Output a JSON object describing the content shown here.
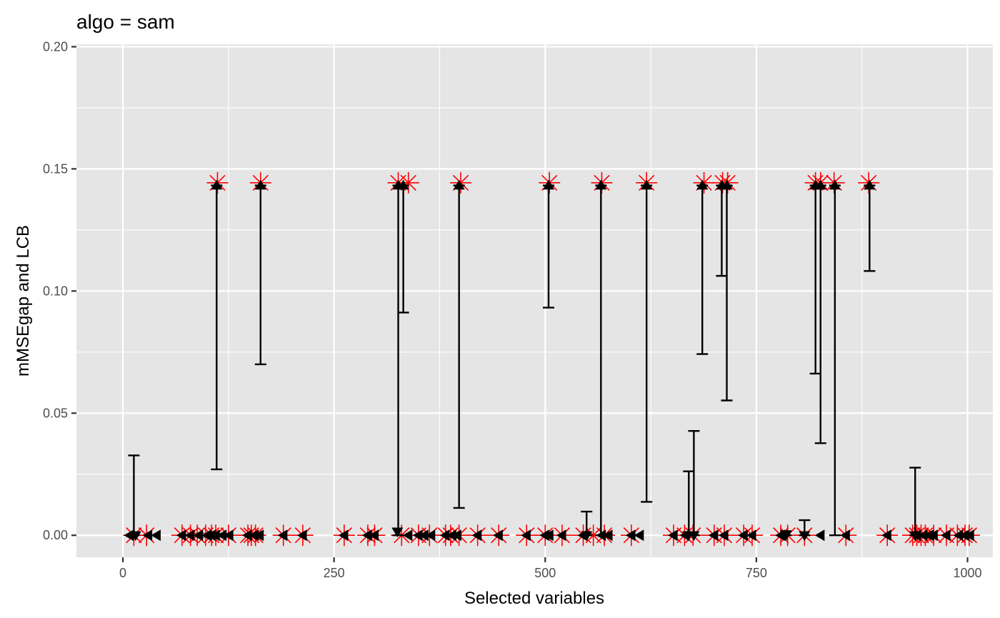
{
  "chart_data": {
    "type": "scatter",
    "title": "algo = sam",
    "xlabel": "Selected variables",
    "ylabel": "mMSEgap and LCB",
    "xlim": [
      -55,
      1030
    ],
    "ylim": [
      -0.009,
      0.201
    ],
    "x_ticks": [
      0,
      250,
      500,
      750,
      1000
    ],
    "x_tick_labels": [
      "0",
      "250",
      "500",
      "750",
      "1000"
    ],
    "y_ticks": [
      0,
      0.05,
      0.1,
      0.15,
      0.2
    ],
    "y_tick_labels": [
      "0.00",
      "0.05",
      "0.10",
      "0.15",
      "0.20"
    ],
    "grid": true,
    "legend": "none",
    "colors": {
      "panel": "#e5e5e5",
      "grid": "#ffffff",
      "star": "#ff0000",
      "marker": "#000000"
    },
    "series": [
      {
        "role": "mMSEgap star markers",
        "x": [
          13,
          28,
          70,
          80,
          88,
          98,
          105,
          110,
          112,
          125,
          148,
          152,
          157,
          163,
          190,
          213,
          262,
          290,
          298,
          326,
          330,
          338,
          350,
          363,
          382,
          388,
          398,
          400,
          420,
          445,
          478,
          500,
          505,
          520,
          545,
          557,
          567,
          570,
          602,
          620,
          652,
          665,
          675,
          688,
          700,
          710,
          712,
          716,
          735,
          745,
          779,
          787,
          807,
          820,
          826,
          842,
          856,
          883,
          905,
          935,
          940,
          945,
          950,
          960,
          975,
          988,
          997,
          1002
        ],
        "y": [
          0,
          0,
          0,
          0,
          0,
          0,
          0,
          0,
          0.1443,
          0,
          0,
          0,
          0,
          0.1443,
          0,
          0,
          0,
          0,
          0,
          0.1443,
          0,
          0.1443,
          0,
          0,
          0,
          0,
          0,
          0.1443,
          0,
          0,
          0,
          0,
          0.1443,
          0,
          0,
          0,
          0.1443,
          0,
          0,
          0.1443,
          0,
          0,
          0,
          0.1443,
          0,
          0.1443,
          0,
          0.1443,
          0,
          0,
          0,
          0,
          0,
          0.1443,
          0.1443,
          0.1443,
          0,
          0.1443,
          0,
          0,
          0,
          0,
          0,
          0,
          0,
          0,
          0,
          0
        ]
      },
      {
        "role": "LCB error bars",
        "intervals": [
          {
            "x": 13,
            "low": 0,
            "high": 0.0327
          },
          {
            "x": 111,
            "low": 0.027,
            "high": 0.1432
          },
          {
            "x": 163,
            "low": 0.07,
            "high": 0.1432
          },
          {
            "x": 326,
            "low": 0,
            "high": 0.1432
          },
          {
            "x": 332,
            "low": 0.0912,
            "high": 0.1432
          },
          {
            "x": 398,
            "low": 0.0112,
            "high": 0.1432
          },
          {
            "x": 504,
            "low": 0.0932,
            "high": 0.1432
          },
          {
            "x": 549,
            "low": 0,
            "high": 0.0097
          },
          {
            "x": 566,
            "low": 0,
            "high": 0.1432
          },
          {
            "x": 620,
            "low": 0.0137,
            "high": 0.1432
          },
          {
            "x": 670,
            "low": 0,
            "high": 0.0262
          },
          {
            "x": 676,
            "low": 0,
            "high": 0.0427
          },
          {
            "x": 686,
            "low": 0.0742,
            "high": 0.1432
          },
          {
            "x": 709,
            "low": 0.1062,
            "high": 0.1432
          },
          {
            "x": 715,
            "low": 0.0552,
            "high": 0.1432
          },
          {
            "x": 785,
            "low": 0,
            "high": 0.0017
          },
          {
            "x": 807,
            "low": 0,
            "high": 0.0062
          },
          {
            "x": 820,
            "low": 0.0662,
            "high": 0.1432
          },
          {
            "x": 826,
            "low": 0.0377,
            "high": 0.1432
          },
          {
            "x": 843,
            "low": 0,
            "high": 0.1432
          },
          {
            "x": 884,
            "low": 0.1082,
            "high": 0.1432
          },
          {
            "x": 938,
            "low": 0,
            "high": 0.0277
          }
        ]
      },
      {
        "role": "triangle-up markers",
        "x": [
          111,
          163,
          326,
          332,
          398,
          504,
          566,
          620,
          686,
          709,
          715,
          820,
          826,
          843,
          884
        ],
        "y": [
          0.1432,
          0.1432,
          0.1432,
          0.1432,
          0.1432,
          0.1432,
          0.1432,
          0.1432,
          0.1432,
          0.1432,
          0.1432,
          0.1432,
          0.1432,
          0.1432,
          0.1432
        ]
      },
      {
        "role": "triangle-down markers",
        "x": [
          15,
          325,
          549,
          669,
          676,
          785,
          807,
          938
        ],
        "y": [
          0,
          0.0015,
          0,
          0,
          0,
          0,
          0,
          0
        ]
      },
      {
        "role": "triangle-left markers",
        "x": [
          8,
          30,
          40,
          70,
          80,
          90,
          100,
          105,
          110,
          118,
          126,
          148,
          156,
          162,
          190,
          213,
          262,
          290,
          298,
          338,
          350,
          357,
          365,
          382,
          390,
          396,
          420,
          445,
          478,
          500,
          505,
          520,
          545,
          567,
          575,
          602,
          612,
          652,
          666,
          700,
          712,
          735,
          745,
          779,
          826,
          856,
          905,
          940,
          948,
          955,
          960,
          975,
          990,
          997,
          1003
        ],
        "y": [
          0,
          0,
          0,
          0,
          0,
          0,
          0,
          0,
          0,
          0,
          0,
          0,
          0,
          0,
          0,
          0,
          0,
          0,
          0,
          0,
          0,
          0,
          0,
          0,
          0,
          0,
          0,
          0,
          0,
          0,
          0,
          0,
          0,
          0,
          0,
          0,
          0,
          0,
          0,
          0,
          0,
          0,
          0,
          0,
          0,
          0,
          0,
          0,
          0,
          0,
          0,
          0,
          0,
          0,
          0
        ]
      }
    ]
  }
}
